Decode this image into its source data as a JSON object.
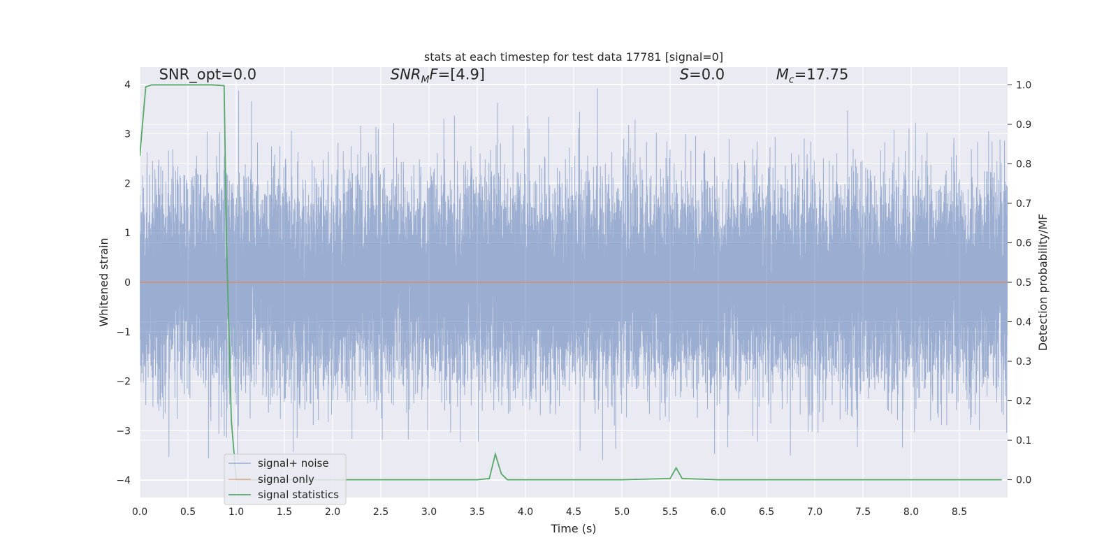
{
  "chart_data": {
    "type": "line",
    "title": "stats at each timestep for test data 17781 [signal=0]",
    "xlabel": "Time (s)",
    "ylabel": "Whitened strain",
    "ylabel_right": "Detection probability/MF",
    "xlim": [
      0.0,
      9.0
    ],
    "ylim": [
      -4.35,
      4.35
    ],
    "ylim_right": [
      -0.045,
      1.045
    ],
    "x_ticks": [
      "0.0",
      "0.5",
      "1.0",
      "1.5",
      "2.0",
      "2.5",
      "3.0",
      "3.5",
      "4.0",
      "4.5",
      "5.0",
      "5.5",
      "6.0",
      "6.5",
      "7.0",
      "7.5",
      "8.0",
      "8.5"
    ],
    "y_ticks": [
      "4",
      "3",
      "2",
      "1",
      "0",
      "−1",
      "−2",
      "−3",
      "−4"
    ],
    "y_ticks_right": [
      "1.0",
      "0.9",
      "0.8",
      "0.7",
      "0.6",
      "0.5",
      "0.4",
      "0.3",
      "0.2",
      "0.1",
      "0.0"
    ],
    "grid": true,
    "legend_position": "lower-left",
    "annotations": [
      {
        "parts": [
          {
            "t": "SNR_opt=0.0",
            "i": false
          }
        ],
        "x": 0.2,
        "y": 4.1
      },
      {
        "parts": [
          {
            "t": "SNR",
            "i": true
          },
          {
            "t": "M",
            "i": true,
            "sub": true
          },
          {
            "t": "F",
            "i": true
          },
          {
            "t": "=[4.9]",
            "i": false
          }
        ],
        "x": 2.6,
        "y": 4.1
      },
      {
        "parts": [
          {
            "t": "S",
            "i": true
          },
          {
            "t": "=0.0",
            "i": false
          }
        ],
        "x": 5.6,
        "y": 4.1
      },
      {
        "parts": [
          {
            "t": "M",
            "i": true
          },
          {
            "t": "c",
            "i": true,
            "sub": true
          },
          {
            "t": "=17.75",
            "i": false
          }
        ],
        "x": 6.6,
        "y": 4.1
      }
    ],
    "series": [
      {
        "name": "signal+ noise",
        "color": "#4c72b0",
        "axis": "left",
        "kind": "noise",
        "sample_rate_hz": 2048,
        "duration_s": 9.0,
        "noise_std": 1.0,
        "seed": 17781
      },
      {
        "name": "signal only",
        "color": "#dd8452",
        "axis": "left",
        "kind": "line",
        "x": [
          0.0,
          9.0
        ],
        "y": [
          0.0,
          0.0
        ]
      },
      {
        "name": "signal statistics",
        "color": "#55a868",
        "axis": "right",
        "kind": "line",
        "x": [
          0.0,
          0.0625,
          0.125,
          0.25,
          0.5,
          0.75,
          0.875,
          0.9,
          0.95,
          1.0,
          1.25,
          2.0,
          3.0,
          3.5,
          3.625,
          3.6875,
          3.75,
          3.8125,
          4.0,
          5.0,
          5.5,
          5.5625,
          5.625,
          6.0,
          7.0,
          8.0,
          8.94
        ],
        "y": [
          0.82,
          0.995,
          1.0,
          1.0,
          1.0,
          1.0,
          0.998,
          0.6,
          0.15,
          0.0,
          0.0,
          0.0,
          0.0,
          0.0,
          0.003,
          0.065,
          0.015,
          0.0,
          0.0,
          0.0,
          0.003,
          0.03,
          0.003,
          0.0,
          0.0,
          0.0,
          0.0
        ]
      }
    ]
  }
}
